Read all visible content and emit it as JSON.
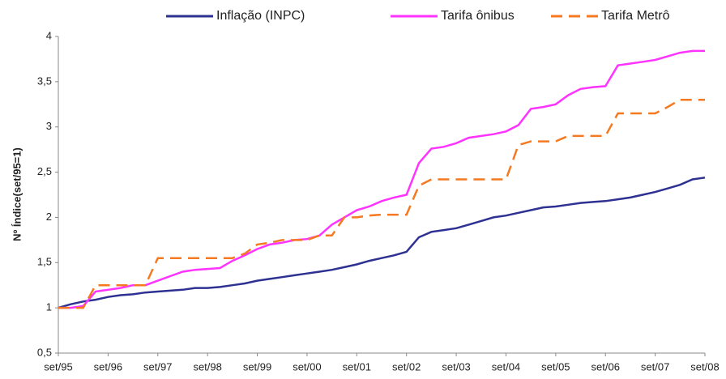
{
  "chart_data": {
    "type": "line",
    "ylabel": "Nº Índice(set/95=1)",
    "categories": [
      "set/95",
      null,
      null,
      null,
      "set/96",
      null,
      null,
      null,
      "set/97",
      null,
      null,
      null,
      "set/98",
      null,
      null,
      null,
      "set/99",
      null,
      null,
      null,
      "set/00",
      null,
      null,
      null,
      "set/01",
      null,
      null,
      null,
      "set/02",
      null,
      null,
      null,
      "set/03",
      null,
      null,
      null,
      "set/04",
      null,
      null,
      null,
      "set/05",
      null,
      null,
      null,
      "set/06",
      null,
      null,
      null,
      "set/07",
      null,
      null,
      null,
      "set/08"
    ],
    "series": [
      {
        "name": "Inflação (INPC)",
        "color": "#2e3192",
        "dash": false,
        "values": [
          1.0,
          1.04,
          1.07,
          1.09,
          1.12,
          1.14,
          1.15,
          1.17,
          1.18,
          1.19,
          1.2,
          1.22,
          1.22,
          1.23,
          1.25,
          1.27,
          1.3,
          1.32,
          1.34,
          1.36,
          1.38,
          1.4,
          1.42,
          1.45,
          1.48,
          1.52,
          1.55,
          1.58,
          1.62,
          1.78,
          1.84,
          1.86,
          1.88,
          1.92,
          1.96,
          2.0,
          2.02,
          2.05,
          2.08,
          2.11,
          2.12,
          2.14,
          2.16,
          2.17,
          2.18,
          2.2,
          2.22,
          2.25,
          2.28,
          2.32,
          2.36,
          2.42,
          2.44
        ]
      },
      {
        "name": "Tarifa ônibus",
        "color": "#ff33ff",
        "dash": false,
        "values": [
          1.0,
          1.0,
          1.02,
          1.18,
          1.2,
          1.22,
          1.25,
          1.25,
          1.3,
          1.35,
          1.4,
          1.42,
          1.43,
          1.44,
          1.52,
          1.58,
          1.65,
          1.7,
          1.72,
          1.75,
          1.76,
          1.8,
          1.92,
          2.0,
          2.08,
          2.12,
          2.18,
          2.22,
          2.25,
          2.6,
          2.76,
          2.78,
          2.82,
          2.88,
          2.9,
          2.92,
          2.95,
          3.02,
          3.2,
          3.22,
          3.25,
          3.35,
          3.42,
          3.44,
          3.45,
          3.68,
          3.7,
          3.72,
          3.74,
          3.78,
          3.82,
          3.84,
          3.84
        ]
      },
      {
        "name": "Tarifa Metrô",
        "color": "#f47920",
        "dash": true,
        "values": [
          1.0,
          1.0,
          1.0,
          1.25,
          1.25,
          1.25,
          1.25,
          1.25,
          1.55,
          1.55,
          1.55,
          1.55,
          1.55,
          1.55,
          1.55,
          1.6,
          1.7,
          1.72,
          1.75,
          1.75,
          1.75,
          1.8,
          1.8,
          2.0,
          2.0,
          2.02,
          2.03,
          2.03,
          2.03,
          2.35,
          2.42,
          2.42,
          2.42,
          2.42,
          2.42,
          2.42,
          2.42,
          2.8,
          2.84,
          2.84,
          2.84,
          2.9,
          2.9,
          2.9,
          2.9,
          3.15,
          3.15,
          3.15,
          3.15,
          3.22,
          3.3,
          3.3,
          3.3
        ]
      }
    ],
    "ylim": [
      0.5,
      4
    ],
    "yticks": [
      {
        "value": 0.5,
        "label": "0,5"
      },
      1,
      {
        "value": 1.5,
        "label": "1,5"
      },
      2,
      {
        "value": 2.5,
        "label": "2,5"
      },
      3,
      {
        "value": 3.5,
        "label": "3,5"
      },
      4
    ],
    "grid": false,
    "legend": "top"
  }
}
